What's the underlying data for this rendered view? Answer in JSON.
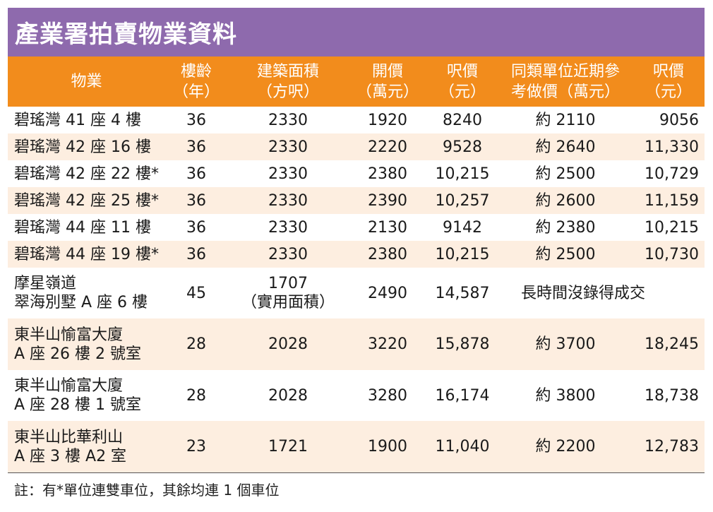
{
  "title": "產業署拍賣物業資料",
  "headers": [
    "物業",
    "樓齡\n（年）",
    "建築面積\n（方呎）",
    "開價\n（萬元）",
    "呎價\n（元）",
    "同類單位近期參\n考做價（萬元）",
    "呎價\n（元）"
  ],
  "rows": [
    {
      "property": "碧瑤灣 41 座 4 樓",
      "age": "36",
      "area": "2330",
      "price": "1920",
      "psf": "8240",
      "ref_price": "約 2110",
      "ref_psf": "9056"
    },
    {
      "property": "碧瑤灣 42 座 16 樓",
      "age": "36",
      "area": "2330",
      "price": "2220",
      "psf": "9528",
      "ref_price": "約 2640",
      "ref_psf": "11,330"
    },
    {
      "property": "碧瑤灣 42 座 22 樓*",
      "age": "36",
      "area": "2330",
      "price": "2380",
      "psf": "10,215",
      "ref_price": "約 2500",
      "ref_psf": "10,729"
    },
    {
      "property": "碧瑤灣 42 座 25 樓*",
      "age": "36",
      "area": "2330",
      "price": "2390",
      "psf": "10,257",
      "ref_price": "約 2600",
      "ref_psf": "11,159"
    },
    {
      "property": "碧瑤灣 44 座 11 樓",
      "age": "36",
      "area": "2330",
      "price": "2130",
      "psf": "9142",
      "ref_price": "約 2380",
      "ref_psf": "10,215"
    },
    {
      "property": "碧瑤灣 44 座 19 樓*",
      "age": "36",
      "area": "2330",
      "price": "2380",
      "psf": "10,215",
      "ref_price": "約 2500",
      "ref_psf": "10,730"
    },
    {
      "property": "摩星嶺道\n翠海別墅 A 座 6 樓",
      "age": "45",
      "area": "1707\n（實用面積）",
      "price": "2490",
      "psf": "14,587",
      "ref_note": "長時間沒錄得成交"
    },
    {
      "property": "東半山愉富大廈\nA 座 26 樓 2 號室",
      "age": "28",
      "area": "2028",
      "price": "3220",
      "psf": "15,878",
      "ref_price": "約 3700",
      "ref_psf": "18,245"
    },
    {
      "property": "東半山愉富大廈\nA 座 28 樓 1 號室",
      "age": "28",
      "area": "2028",
      "price": "3280",
      "psf": "16,174",
      "ref_price": "約 3800",
      "ref_psf": "18,738"
    },
    {
      "property": "東半山比華利山\nA 座 3 樓 A2 室",
      "age": "23",
      "area": "1721",
      "price": "1900",
      "psf": "11,040",
      "ref_price": "約 2200",
      "ref_psf": "12,783"
    }
  ],
  "note": "註：有*單位連雙車位，其餘均連 1 個車位"
}
